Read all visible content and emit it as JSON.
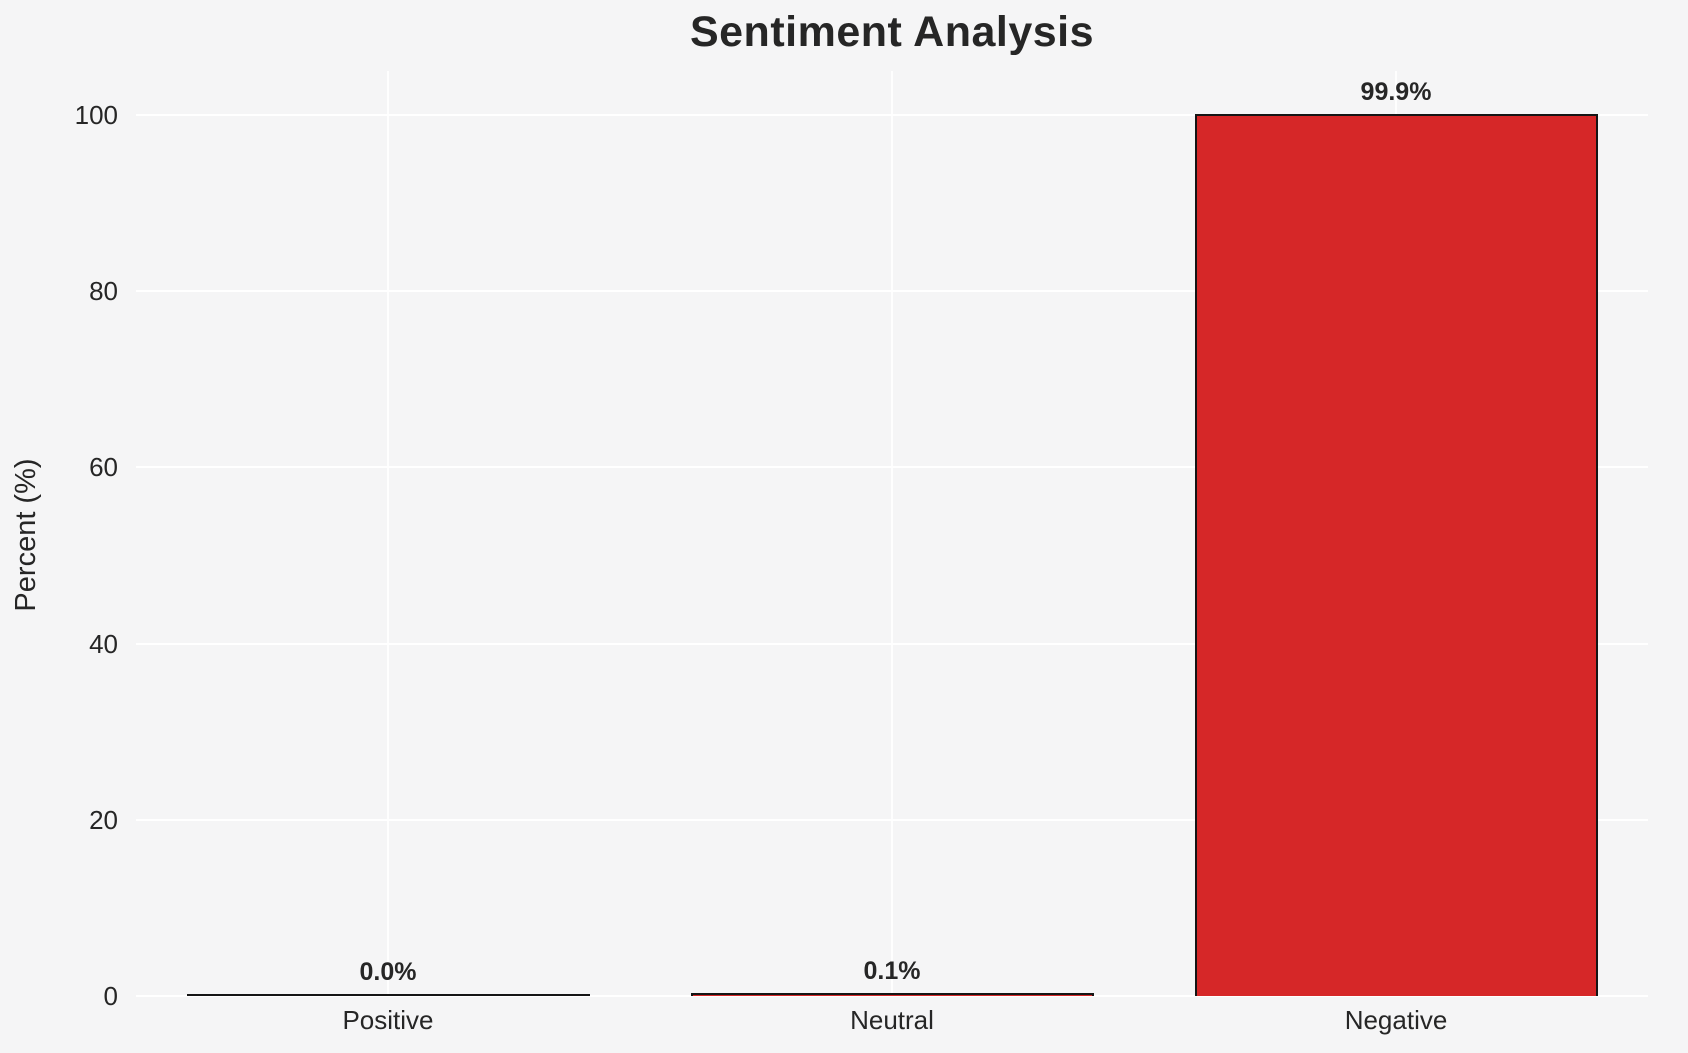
{
  "chart_data": {
    "type": "bar",
    "title": "Sentiment Analysis",
    "xlabel": "",
    "ylabel": "Percent (%)",
    "categories": [
      "Positive",
      "Neutral",
      "Negative"
    ],
    "values": [
      0.0,
      0.1,
      99.9
    ],
    "value_labels": [
      "0.0%",
      "0.1%",
      "99.9%"
    ],
    "yticks": [
      0,
      20,
      40,
      60,
      80,
      100
    ],
    "ytick_labels": [
      "0",
      "20",
      "40",
      "60",
      "80",
      "100"
    ],
    "ylim": [
      0,
      105
    ],
    "grid": true,
    "legend": false,
    "colors": {
      "background": "#f5f5f6",
      "gridline": "#ffffff",
      "bar_fill": "#d62728",
      "bar_edge": "#151515",
      "text": "#262626"
    }
  }
}
